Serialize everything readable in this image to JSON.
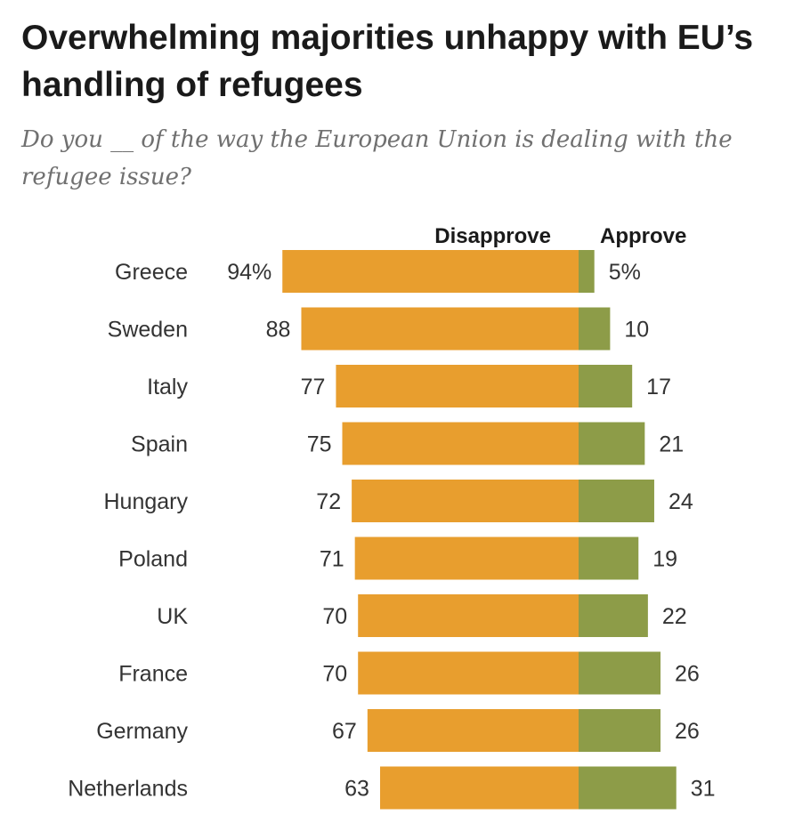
{
  "chart_data": {
    "type": "bar",
    "orientation": "horizontal-diverging",
    "title": "Overwhelming majorities unhappy with EU’s handling of refugees",
    "subtitle": "Do you __ of the way the European Union is dealing with the refugee issue?",
    "categories": [
      "Greece",
      "Sweden",
      "Italy",
      "Spain",
      "Hungary",
      "Poland",
      "UK",
      "France",
      "Germany",
      "Netherlands"
    ],
    "series": [
      {
        "name": "Disapprove",
        "color": "#E89E2E",
        "values": [
          94,
          88,
          77,
          75,
          72,
          71,
          70,
          70,
          67,
          63
        ],
        "labels": [
          "94%",
          "88",
          "77",
          "75",
          "72",
          "71",
          "70",
          "70",
          "67",
          "63"
        ]
      },
      {
        "name": "Approve",
        "color": "#8D9C48",
        "values": [
          5,
          10,
          17,
          21,
          24,
          19,
          22,
          26,
          26,
          31
        ],
        "labels": [
          "5%",
          "10",
          "17",
          "21",
          "24",
          "19",
          "22",
          "26",
          "26",
          "31"
        ]
      }
    ],
    "legend": "top",
    "unit": "%"
  }
}
